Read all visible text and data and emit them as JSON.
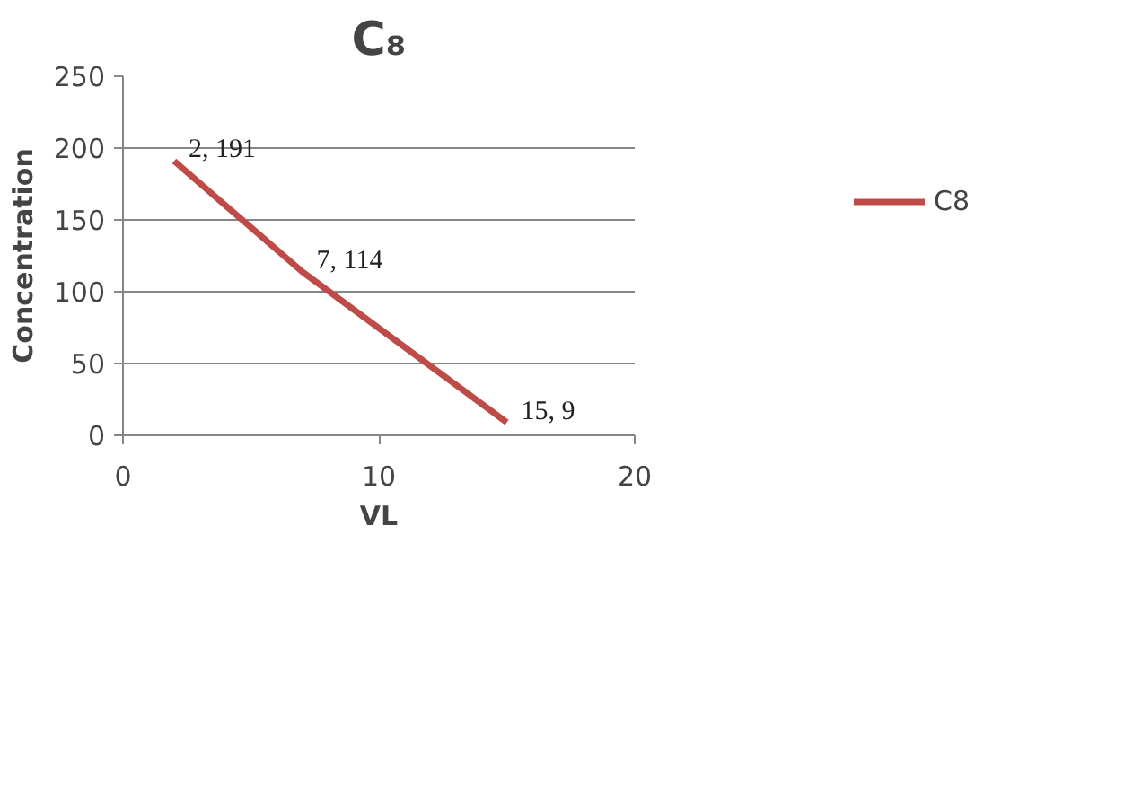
{
  "chart_data": {
    "type": "line",
    "title": "C₈",
    "xlabel": "VL",
    "ylabel": "Concentration",
    "x": [
      2,
      7,
      15
    ],
    "series": [
      {
        "name": "C8",
        "color": "#be4b48",
        "values": [
          191,
          114,
          9
        ],
        "value_labels": [
          "2, 191",
          "7, 114",
          "15, 9"
        ]
      }
    ],
    "xlim": [
      0,
      20
    ],
    "xticks": [
      0,
      10,
      20
    ],
    "ylim": [
      0,
      250
    ],
    "yticks": [
      0,
      50,
      100,
      150,
      200,
      250
    ],
    "grid": "y",
    "legend": "right",
    "marker": "none",
    "line_style": "solid"
  }
}
